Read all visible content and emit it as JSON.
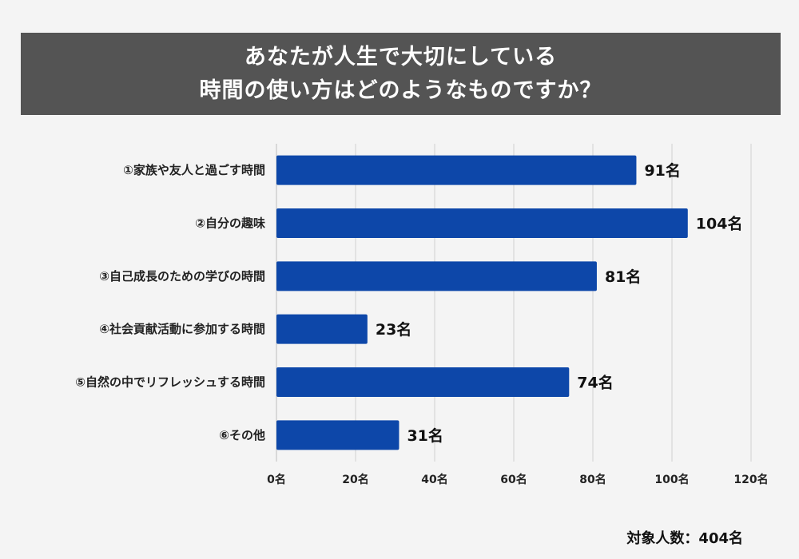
{
  "chart_data": {
    "type": "bar",
    "orientation": "horizontal",
    "title_lines": [
      "あなたが人生で大切にしている",
      "時間の使い方はどのようなものですか？"
    ],
    "categories": [
      "①家族や友人と過ごす時間",
      "②自分の趣味",
      "③自己成長のための学びの時間",
      "④社会貢献活動に参加する時間",
      "⑤自然の中でリフレッシュする時間",
      "⑥その他"
    ],
    "values": [
      91,
      104,
      81,
      23,
      74,
      31
    ],
    "value_labels": [
      "91名",
      "104名",
      "81名",
      "23名",
      "74名",
      "31名"
    ],
    "xlim": [
      0,
      120
    ],
    "ticks": [
      0,
      20,
      40,
      60,
      80,
      100,
      120
    ],
    "tick_labels": [
      "0名",
      "20名",
      "40名",
      "60名",
      "80名",
      "100名",
      "120名"
    ],
    "grid": true,
    "bar_color": "#0d47a9",
    "footnote": "対象人数：404名"
  }
}
